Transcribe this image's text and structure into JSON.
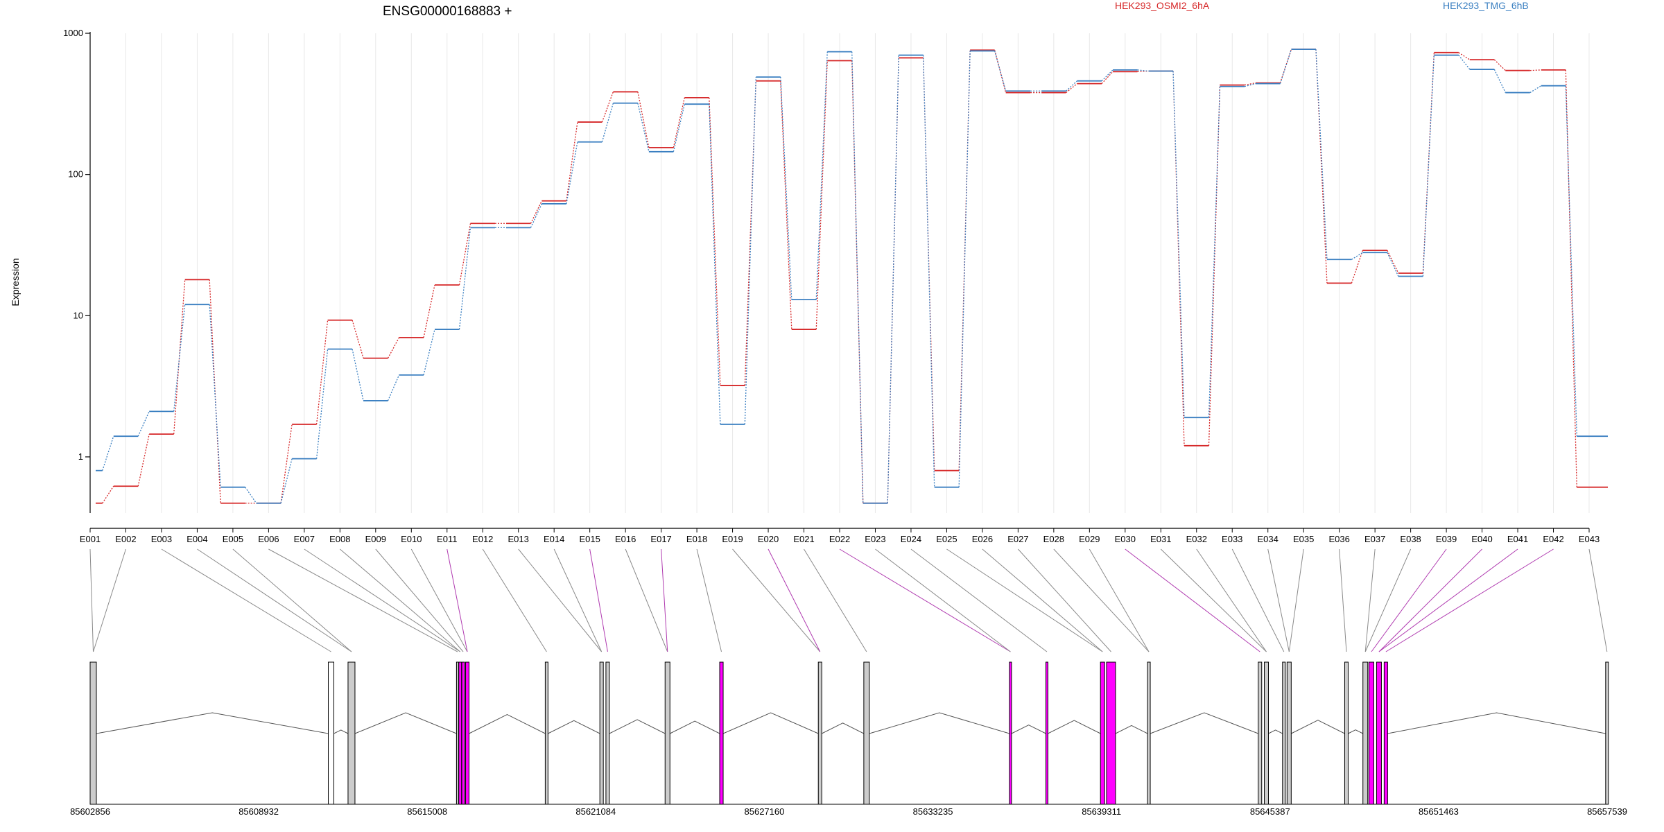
{
  "chart_data": {
    "type": "line",
    "title": "ENSG00000168883 +",
    "ylabel": "Expression",
    "xlabel": "",
    "y_scale": "log",
    "ylim": [
      0.4,
      1000
    ],
    "ytick_labels": [
      "1",
      "10",
      "100",
      "1000"
    ],
    "yticks": [
      1,
      10,
      100,
      1000
    ],
    "grid": "vertical",
    "legend_placement": "top",
    "categories": [
      "E001",
      "E002",
      "E003",
      "E004",
      "E005",
      "E006",
      "E007",
      "E008",
      "E009",
      "E010",
      "E011",
      "E012",
      "E013",
      "E014",
      "E015",
      "E016",
      "E017",
      "E018",
      "E019",
      "E020",
      "E021",
      "E022",
      "E023",
      "E024",
      "E025",
      "E026",
      "E027",
      "E028",
      "E029",
      "E030",
      "E031",
      "E032",
      "E033",
      "E034",
      "E035",
      "E036",
      "E037",
      "E038",
      "E039",
      "E040",
      "E041",
      "E042",
      "E043"
    ],
    "series": [
      {
        "name": "HEK293_OSMI2_6hA",
        "color": "#d62728",
        "values": [
          0.47,
          0.62,
          1.45,
          18,
          0.47,
          0.47,
          1.7,
          9.3,
          5,
          7,
          16.5,
          45,
          45,
          65,
          235,
          385,
          155,
          350,
          3.2,
          460,
          8,
          640,
          0.47,
          670,
          0.8,
          760,
          380,
          380,
          440,
          535,
          540,
          1.2,
          430,
          445,
          770,
          17,
          29,
          20,
          730,
          650,
          545,
          550,
          0.61
        ]
      },
      {
        "name": "HEK293_TMG_6hB",
        "color": "#3a7fc1",
        "values": [
          0.8,
          1.4,
          2.1,
          12,
          0.61,
          0.47,
          0.97,
          5.8,
          2.5,
          3.8,
          8,
          42,
          42,
          62,
          170,
          320,
          145,
          315,
          1.7,
          490,
          13,
          740,
          0.47,
          700,
          0.61,
          750,
          390,
          390,
          460,
          550,
          540,
          1.9,
          420,
          440,
          770,
          25,
          28,
          19,
          700,
          555,
          380,
          425,
          1.4
        ]
      }
    ],
    "gene_model": {
      "coordinate_labels": [
        "85602856",
        "85608932",
        "85615008",
        "85621084",
        "85627160",
        "85633235",
        "85639311",
        "85645387",
        "85651463",
        "85657539"
      ],
      "highlight_color": "#ff00ff",
      "exon_fill": "#cccccc",
      "highlighted_exons": [
        "E011",
        "E015",
        "E017",
        "E020",
        "E022",
        "E030",
        "E039",
        "E040",
        "E041",
        "E042"
      ]
    }
  }
}
